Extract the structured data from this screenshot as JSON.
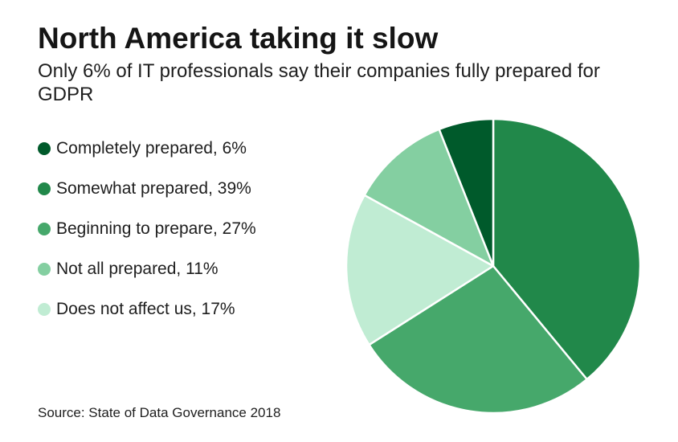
{
  "chart_data": {
    "type": "pie",
    "title": "North America taking it slow",
    "subtitle": "Only 6% of IT professionals say their companies fully prepared for GDPR",
    "slices": [
      {
        "label": "Completely prepared, 6%",
        "value": 6,
        "color": "#005a2b"
      },
      {
        "label": "Somewhat prepared, 39%",
        "value": 39,
        "color": "#21884a"
      },
      {
        "label": "Beginning to prepare, 27%",
        "value": 27,
        "color": "#46a86b"
      },
      {
        "label": "Not all prepared, 11%",
        "value": 11,
        "color": "#84cfa1"
      },
      {
        "label": "Does not affect us, 17%",
        "value": 17,
        "color": "#c0ecd3"
      }
    ],
    "source": "Source: State of Data Governance 2018"
  }
}
